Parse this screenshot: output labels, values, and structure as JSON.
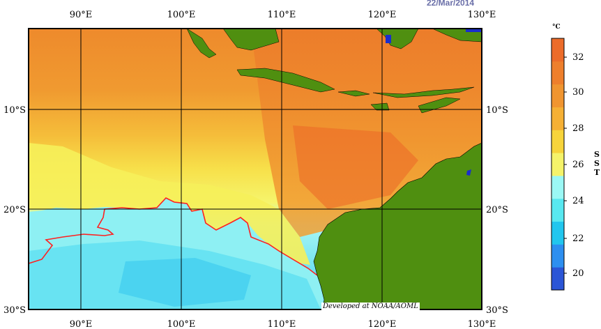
{
  "date": "22/Mar/2014",
  "credit": "Developed at NOAA/AOML",
  "colorbar": {
    "unit": "°C",
    "title": "SST",
    "ticks": [
      "20",
      "22",
      "24",
      "26",
      "28",
      "30",
      "32"
    ],
    "colors": [
      "#2b55d6",
      "#2d8ff0",
      "#22c6ee",
      "#58e8f0",
      "#9bf8f5",
      "#f5f36a",
      "#f7d43b",
      "#f5b035",
      "#f09530",
      "#ee7f2c",
      "#ec6c2a"
    ]
  },
  "map": {
    "lon_labels": [
      "90°E",
      "100°E",
      "110°E",
      "120°E",
      "130°E"
    ],
    "lat_labels": [
      "10°S",
      "20°S",
      "30°S"
    ],
    "land_color": "#4f8f10",
    "contour_color": "#ff2020"
  }
}
